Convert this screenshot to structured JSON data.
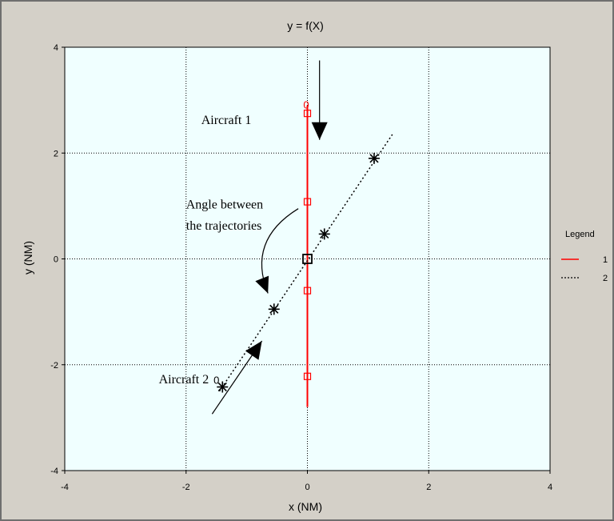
{
  "chart_data": {
    "type": "line",
    "title": "y = f(X)",
    "xlabel": "x (NM)",
    "ylabel": "y (NM)",
    "xlim": [
      -4,
      4
    ],
    "ylim": [
      -4,
      4
    ],
    "xticks": [
      "-4",
      "-2",
      "0",
      "2",
      "4"
    ],
    "yticks": [
      "-4",
      "-2",
      "0",
      "2",
      "4"
    ],
    "grid": true,
    "legend": {
      "title": "Legend",
      "position": "right"
    },
    "series": [
      {
        "name": "1",
        "color": "#ff0000",
        "line": [
          [
            0,
            2.9
          ],
          [
            0,
            -2.8
          ]
        ],
        "markers": [
          [
            0,
            2.75
          ],
          [
            0,
            1.08
          ],
          [
            0,
            -0.6
          ],
          [
            0,
            -2.22
          ]
        ],
        "start_label": {
          "text": "0",
          "x": -0.02,
          "y": 2.9
        }
      },
      {
        "name": "2",
        "color": "#000000",
        "line": [
          [
            -1.45,
            -2.5
          ],
          [
            1.4,
            2.35
          ]
        ],
        "markers": [
          [
            -1.4,
            -2.42
          ],
          [
            -0.55,
            -0.95
          ],
          [
            0.28,
            0.47
          ],
          [
            1.1,
            1.9
          ]
        ],
        "start_label": {
          "text": "0",
          "x": -1.5,
          "y": -2.3
        }
      }
    ],
    "intersection": {
      "x": 0,
      "y": 0
    },
    "annotations": [
      {
        "text": "Aircraft 1",
        "x": -1.75,
        "y": 2.55
      },
      {
        "text": "Angle between",
        "x": -2.0,
        "y": 0.95
      },
      {
        "text": "the trajectories",
        "x": -2.0,
        "y": 0.55
      },
      {
        "text": "Aircraft 2",
        "x": -2.45,
        "y": -2.35
      }
    ],
    "arrows": [
      {
        "name": "aircraft-1-direction-arrow",
        "from": [
          0.2,
          3.75
        ],
        "to": [
          0.2,
          2.25
        ]
      },
      {
        "name": "aircraft-2-direction-arrow",
        "from": [
          -1.57,
          -2.93
        ],
        "to": [
          -0.75,
          -1.55
        ]
      }
    ],
    "angle_arrow": {
      "from": [
        -0.15,
        0.95
      ],
      "ctrl": [
        -1.0,
        0.35
      ],
      "to": [
        -0.65,
        -0.65
      ]
    }
  }
}
